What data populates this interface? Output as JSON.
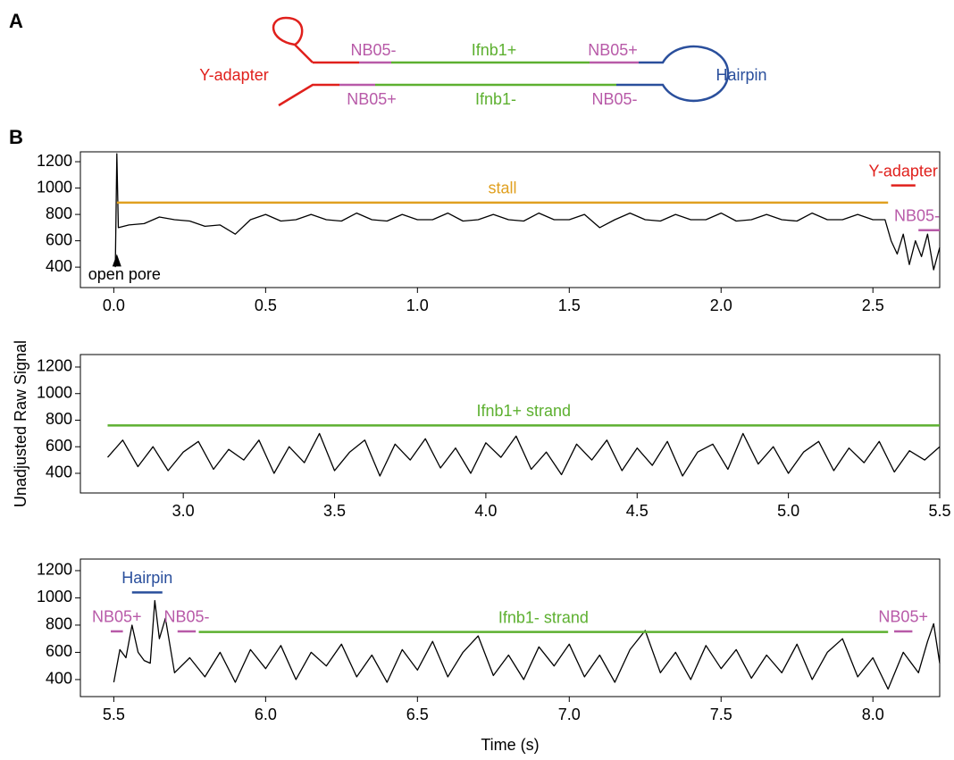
{
  "diagram": {
    "panel": "A",
    "labels": [
      {
        "text": "Y-adapter",
        "color": "#e0201c"
      },
      {
        "text": "NB05-",
        "color": "#b85aa8"
      },
      {
        "text": "Ifnb1+",
        "color": "#5db030"
      },
      {
        "text": "NB05+",
        "color": "#b85aa8"
      },
      {
        "text": "Hairpin",
        "color": "#2a4f9c"
      },
      {
        "text": "NB05+",
        "color": "#b85aa8"
      },
      {
        "text": "Ifnb1-",
        "color": "#5db030"
      },
      {
        "text": "NB05-",
        "color": "#b85aa8"
      }
    ]
  },
  "chart_data": [
    {
      "type": "line",
      "panel": "B",
      "color": "#000000",
      "x": [
        0.005,
        0.01,
        0.015,
        0.05,
        0.1,
        0.15,
        0.2,
        0.25,
        0.3,
        0.35,
        0.4,
        0.45,
        0.5,
        0.55,
        0.6,
        0.65,
        0.7,
        0.75,
        0.8,
        0.85,
        0.9,
        0.95,
        1.0,
        1.05,
        1.1,
        1.15,
        1.2,
        1.25,
        1.3,
        1.35,
        1.4,
        1.45,
        1.5,
        1.55,
        1.6,
        1.65,
        1.7,
        1.75,
        1.8,
        1.85,
        1.9,
        1.95,
        2.0,
        2.05,
        2.1,
        2.15,
        2.2,
        2.25,
        2.3,
        2.35,
        2.4,
        2.45,
        2.5,
        2.54,
        2.56,
        2.58,
        2.6,
        2.62,
        2.64,
        2.66,
        2.68,
        2.7,
        2.72
      ],
      "values": [
        400,
        1260,
        700,
        720,
        730,
        780,
        760,
        750,
        710,
        720,
        650,
        760,
        800,
        750,
        760,
        800,
        760,
        750,
        810,
        760,
        750,
        800,
        760,
        760,
        810,
        750,
        760,
        800,
        760,
        750,
        810,
        760,
        760,
        800,
        700,
        760,
        810,
        760,
        750,
        800,
        760,
        760,
        810,
        750,
        760,
        800,
        760,
        750,
        810,
        760,
        760,
        800,
        760,
        760,
        600,
        500,
        650,
        420,
        600,
        480,
        650,
        380,
        550
      ],
      "xlim": [
        -0.11,
        2.72
      ],
      "ylim": [
        245,
        1275
      ],
      "xticks": [
        {
          "value": 0,
          "label": "0.0"
        },
        0.5,
        {
          "value": 1,
          "label": "1.0"
        },
        1.5,
        {
          "value": 2,
          "label": "2.0"
        },
        2.5
      ],
      "yticks": [
        400,
        600,
        800,
        1000,
        1200
      ],
      "annotations": [
        {
          "text": "stall",
          "color": "#e0a020",
          "x": [
            0.01,
            2.55
          ],
          "y": 890
        },
        {
          "text": "Y-adapter",
          "color": "#e0201c",
          "x": [
            2.56,
            2.64
          ],
          "y": 1020
        },
        {
          "text": "NB05-",
          "color": "#b85aa8",
          "x": [
            2.65,
            2.72
          ],
          "y": 680
        }
      ],
      "pointer": {
        "text": "open pore",
        "x": 0.01,
        "y": 500
      }
    },
    {
      "type": "line",
      "color": "#000000",
      "ylabel": "Unadjusted Raw Signal",
      "x": [
        2.75,
        2.8,
        2.85,
        2.9,
        2.95,
        3.0,
        3.05,
        3.1,
        3.15,
        3.2,
        3.25,
        3.3,
        3.35,
        3.4,
        3.45,
        3.5,
        3.55,
        3.6,
        3.65,
        3.7,
        3.75,
        3.8,
        3.85,
        3.9,
        3.95,
        4.0,
        4.05,
        4.1,
        4.15,
        4.2,
        4.25,
        4.3,
        4.35,
        4.4,
        4.45,
        4.5,
        4.55,
        4.6,
        4.65,
        4.7,
        4.75,
        4.8,
        4.85,
        4.9,
        4.95,
        5.0,
        5.05,
        5.1,
        5.15,
        5.2,
        5.25,
        5.3,
        5.35,
        5.4,
        5.45,
        5.5
      ],
      "values": [
        520,
        650,
        450,
        600,
        420,
        560,
        640,
        430,
        580,
        500,
        650,
        400,
        600,
        480,
        700,
        420,
        560,
        650,
        380,
        620,
        500,
        660,
        440,
        590,
        400,
        630,
        520,
        680,
        430,
        560,
        390,
        620,
        500,
        650,
        420,
        590,
        460,
        640,
        380,
        560,
        620,
        430,
        700,
        470,
        600,
        400,
        560,
        640,
        420,
        590,
        480,
        640,
        410,
        570,
        500,
        600
      ],
      "xlim": [
        2.66,
        5.5
      ],
      "ylim": [
        252,
        1294
      ],
      "xticks": [
        {
          "value": 3,
          "label": "3.0"
        },
        3.5,
        {
          "value": 4,
          "label": "4.0"
        },
        4.5,
        {
          "value": 5,
          "label": "5.0"
        },
        5.5
      ],
      "yticks": [
        400,
        600,
        800,
        1000,
        1200
      ],
      "annotations": [
        {
          "text": "Ifnb1+ strand",
          "color": "#5db030",
          "x": [
            2.75,
            5.5
          ],
          "y": 760
        }
      ]
    },
    {
      "type": "line",
      "color": "#000000",
      "xlabel": "Time (s)",
      "x": [
        5.5,
        5.52,
        5.54,
        5.56,
        5.58,
        5.6,
        5.62,
        5.635,
        5.65,
        5.67,
        5.7,
        5.75,
        5.8,
        5.85,
        5.9,
        5.95,
        6.0,
        6.05,
        6.1,
        6.15,
        6.2,
        6.25,
        6.3,
        6.35,
        6.4,
        6.45,
        6.5,
        6.55,
        6.6,
        6.65,
        6.7,
        6.75,
        6.8,
        6.85,
        6.9,
        6.95,
        7.0,
        7.05,
        7.1,
        7.15,
        7.2,
        7.25,
        7.3,
        7.35,
        7.4,
        7.45,
        7.5,
        7.55,
        7.6,
        7.65,
        7.7,
        7.75,
        7.8,
        7.85,
        7.9,
        7.95,
        8.0,
        8.05,
        8.1,
        8.15,
        8.18,
        8.2,
        8.22
      ],
      "values": [
        380,
        620,
        560,
        800,
        600,
        540,
        520,
        980,
        700,
        850,
        450,
        560,
        420,
        600,
        380,
        620,
        480,
        650,
        400,
        600,
        500,
        660,
        420,
        580,
        380,
        620,
        470,
        680,
        420,
        600,
        720,
        430,
        580,
        400,
        640,
        500,
        660,
        420,
        580,
        380,
        620,
        760,
        450,
        600,
        400,
        650,
        480,
        620,
        410,
        580,
        450,
        660,
        400,
        600,
        700,
        420,
        560,
        330,
        600,
        450,
        680,
        810,
        520
      ],
      "xlim": [
        5.39,
        8.22
      ],
      "ylim": [
        275,
        1285
      ],
      "xticks": [
        5.5,
        {
          "value": 6,
          "label": "6.0"
        },
        6.5,
        {
          "value": 7,
          "label": "7.0"
        },
        7.5,
        {
          "value": 8,
          "label": "8.0"
        }
      ],
      "yticks": [
        400,
        600,
        800,
        1000,
        1200
      ],
      "annotations": [
        {
          "text": "Hairpin",
          "color": "#2a4f9c",
          "x": [
            5.56,
            5.66
          ],
          "y": 1040
        },
        {
          "text": "NB05+",
          "color": "#b85aa8",
          "x": [
            5.49,
            5.53
          ],
          "y": 754
        },
        {
          "text": "NB05-",
          "color": "#b85aa8",
          "x": [
            5.71,
            5.77
          ],
          "y": 754
        },
        {
          "text": "Ifnb1- strand",
          "color": "#5db030",
          "x": [
            5.78,
            8.05
          ],
          "y": 750
        },
        {
          "text": "NB05+",
          "color": "#b85aa8",
          "x": [
            8.07,
            8.13
          ],
          "y": 754
        }
      ]
    }
  ]
}
